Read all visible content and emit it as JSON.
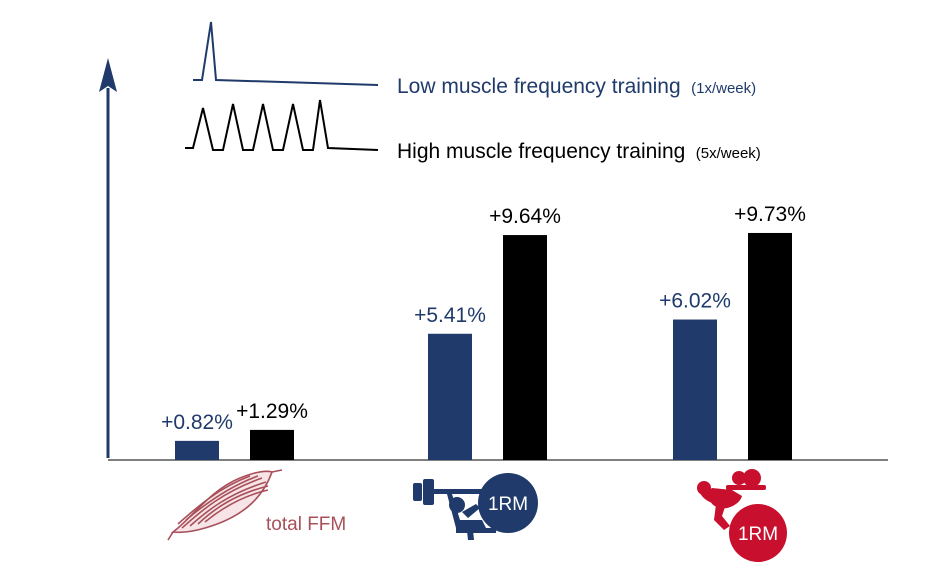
{
  "chart_data": {
    "type": "bar",
    "title": "",
    "xlabel": "",
    "ylabel": "",
    "categories": [
      "total FFM",
      "1RM",
      "1RM"
    ],
    "series": [
      {
        "name": "Low muscle frequency training",
        "name_suffix": "(1x/week)",
        "color": "#1f3a6b",
        "values": [
          0.82,
          5.41,
          6.02
        ],
        "labels": [
          "+0.82%",
          "+5.41%",
          "+6.02%"
        ]
      },
      {
        "name": "High muscle frequency training",
        "name_suffix": "(5x/week)",
        "color": "#000000",
        "values": [
          1.29,
          9.64,
          9.73
        ],
        "labels": [
          "+1.29%",
          "+9.64%",
          "+9.73%"
        ]
      }
    ],
    "ylim": [
      0,
      18
    ],
    "grid": false,
    "legend": "top-left"
  },
  "category_labels": {
    "ffm": "total FFM",
    "bench": "1RM",
    "squat": "1RM"
  },
  "colors": {
    "low": "#1f3a6b",
    "high": "#000000",
    "muscle": "#a8505a",
    "squat_badge": "#c8102e",
    "axis": "#1f3a6b"
  },
  "icons": {
    "ffm": "muscle-fiber-icon",
    "bench": "bench-press-icon",
    "squat": "squat-icon"
  }
}
